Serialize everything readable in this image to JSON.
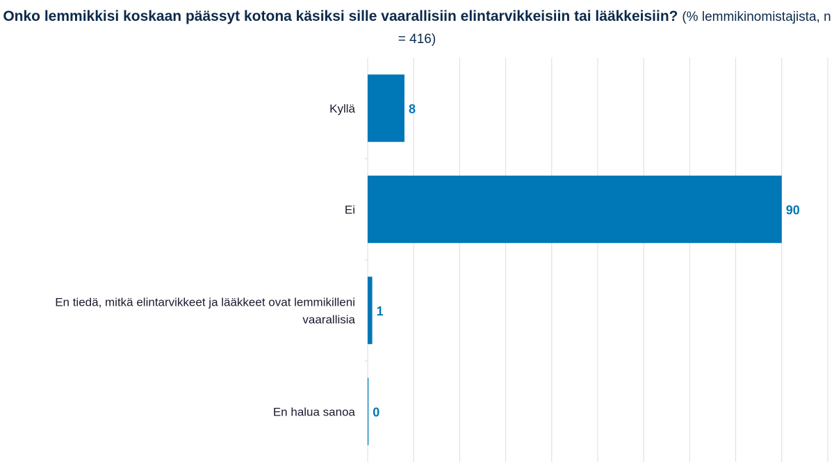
{
  "chart_data": {
    "type": "bar",
    "orientation": "horizontal",
    "title": "Onko lemmikkisi koskaan päässyt kotona käsiksi sille vaarallisiin elintarvikkeisiin tai lääkkeisiin?",
    "subtitle": "(% lemmikinomistajista, n = 416)",
    "categories": [
      "Kyllä",
      "Ei",
      "En tiedä, mitkä elintarvikkeet ja lääkkeet ovat lemmikilleni vaarallisia",
      "En halua sanoa"
    ],
    "values": [
      8,
      90,
      1,
      0
    ],
    "data_labels": [
      "8",
      "90",
      "1",
      "0"
    ],
    "xlim": [
      0,
      100
    ],
    "grid": true,
    "bar_color": "#0077b6",
    "label_color": "#0077b6"
  }
}
